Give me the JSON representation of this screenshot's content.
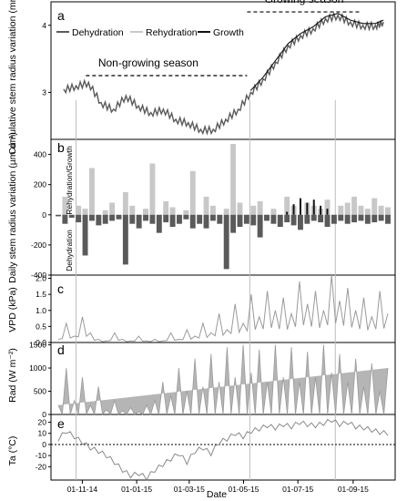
{
  "x_axis": {
    "label": "Date",
    "tick_labels": [
      "01-11-14",
      "01-01-15",
      "01-03-15",
      "01-05-15",
      "01-07-15",
      "01-09-15"
    ]
  },
  "colors": {
    "dehydration": "#5a5a5a",
    "rehydration": "#c8c8c8",
    "growth": "#111111",
    "vpd": "#9a9a9a",
    "rad": "#9a9a9a",
    "ta": "#8a8a8a"
  },
  "chart_data": [
    {
      "panel": "a",
      "type": "line",
      "ylabel": "Cumulative stem radius variation (mm)",
      "ylim": [
        2.3,
        4.35
      ],
      "yticks": [
        3,
        4
      ],
      "series": [
        {
          "name": "Dehydration",
          "x": [
            "2014-10-11",
            "2014-10-25",
            "2014-11-08",
            "2014-11-22",
            "2014-12-06",
            "2014-12-20",
            "2015-01-03",
            "2015-01-17",
            "2015-01-31",
            "2015-02-14",
            "2015-02-28",
            "2015-03-14",
            "2015-03-28",
            "2015-04-11",
            "2015-04-25",
            "2015-05-09",
            "2015-05-23",
            "2015-06-06",
            "2015-06-20",
            "2015-07-04",
            "2015-07-18",
            "2015-08-01",
            "2015-08-15",
            "2015-08-29",
            "2015-09-12",
            "2015-09-26",
            "2015-10-05"
          ],
          "y": [
            3.05,
            3.1,
            3.15,
            2.85,
            2.75,
            2.95,
            2.8,
            2.7,
            2.75,
            2.6,
            2.55,
            2.45,
            2.45,
            2.6,
            2.75,
            3.0,
            3.2,
            3.45,
            3.7,
            3.85,
            3.95,
            4.1,
            4.15,
            4.05,
            4.0,
            4.0,
            4.05
          ]
        }
      ],
      "legend": {
        "entries": [
          "Dehydration",
          "Rehydration",
          "Growth"
        ],
        "position": "top-left"
      },
      "annotations": [
        {
          "text": "Non-growing season",
          "span": [
            "2014-11-05",
            "2015-05-05"
          ],
          "y": 3.25
        },
        {
          "text": "Growing season",
          "span": [
            "2015-05-05",
            "2015-09-10"
          ],
          "y": 4.2
        }
      ]
    },
    {
      "panel": "b",
      "type": "bar",
      "ylabel": "Daily stem radius variation (µm d⁻¹)",
      "ylim": [
        -400,
        500
      ],
      "yticks": [
        -400,
        -200,
        0,
        200,
        400
      ],
      "texts": [
        "Rehydration/Growth",
        "Dehydration"
      ],
      "series": [
        {
          "name": "Rehydration",
          "pos": [
            0,
            120,
            0,
            60,
            40,
            310,
            0,
            30,
            80,
            0,
            150,
            60,
            0,
            40,
            340,
            0,
            90,
            50,
            0,
            30,
            290,
            0,
            120,
            60,
            0,
            40,
            470,
            80,
            0,
            60,
            90,
            0,
            40,
            0,
            120,
            60,
            0,
            80,
            60,
            40,
            100,
            0,
            60,
            80,
            120,
            60,
            40,
            110,
            60,
            50
          ],
          "neg": []
        },
        {
          "name": "Dehydration",
          "pos": [],
          "neg": [
            -10,
            -60,
            -20,
            -50,
            -270,
            -40,
            -70,
            -60,
            -40,
            -30,
            -330,
            -60,
            -90,
            -40,
            -60,
            -120,
            -50,
            -80,
            -60,
            -30,
            -90,
            -60,
            -90,
            -40,
            -60,
            -360,
            -120,
            -80,
            -60,
            -70,
            -150,
            -40,
            -60,
            -80,
            -50,
            -70,
            -100,
            -60,
            -40,
            -50,
            -80,
            -60,
            -40,
            -60,
            -50,
            -40,
            -60,
            -50,
            -40,
            -60
          ]
        },
        {
          "name": "Growth",
          "points": [
            [
              34,
              20
            ],
            [
              35,
              70
            ],
            [
              36,
              110
            ],
            [
              37,
              80
            ],
            [
              38,
              100
            ],
            [
              39,
              60
            ],
            [
              40,
              40
            ]
          ]
        }
      ]
    },
    {
      "panel": "c",
      "type": "line",
      "ylabel": "VPD (kPa)",
      "ylim": [
        0,
        2.1
      ],
      "yticks": [
        0.0,
        0.5,
        1.0,
        1.5,
        2.0
      ],
      "values": [
        0.1,
        0.6,
        0.2,
        0.8,
        0.3,
        0.1,
        0.05,
        0.3,
        0.1,
        0.05,
        0.2,
        0.05,
        0.1,
        0.05,
        0.3,
        0.1,
        0.4,
        0.2,
        0.6,
        0.3,
        0.9,
        0.4,
        1.2,
        0.6,
        1.5,
        0.8,
        1.6,
        1.0,
        1.4,
        0.9,
        1.9,
        1.2,
        1.6,
        1.0,
        2.1,
        1.3,
        1.7,
        1.0,
        1.4,
        0.8,
        1.6,
        0.9
      ]
    },
    {
      "panel": "d",
      "type": "line",
      "ylabel": "Rad (W m⁻²)",
      "ylim": [
        0,
        1550
      ],
      "yticks": [
        0,
        500,
        1000,
        1500
      ],
      "values": [
        200,
        1000,
        300,
        800,
        200,
        600,
        100,
        300,
        80,
        150,
        60,
        200,
        300,
        700,
        400,
        1000,
        500,
        1200,
        600,
        1300,
        700,
        1450,
        800,
        1500,
        900,
        1400,
        700,
        1500,
        800,
        1450,
        700,
        1350,
        800,
        1500,
        900,
        1300,
        700,
        1200,
        600,
        1100,
        500,
        1000
      ]
    },
    {
      "panel": "e",
      "type": "line",
      "ylabel": "Ta (°C)",
      "ylim": [
        -32,
        27
      ],
      "yticks": [
        -20,
        -10,
        0,
        10,
        20
      ],
      "hline": 0,
      "values": [
        3,
        10,
        5,
        0,
        -5,
        -8,
        -12,
        -18,
        -25,
        -30,
        -28,
        -32,
        -25,
        -20,
        -15,
        -10,
        -18,
        -8,
        -5,
        -10,
        0,
        3,
        8,
        5,
        10,
        12,
        15,
        13,
        16,
        14,
        18,
        16,
        15,
        17,
        20,
        16,
        18,
        14,
        13,
        11,
        9,
        8
      ]
    }
  ]
}
